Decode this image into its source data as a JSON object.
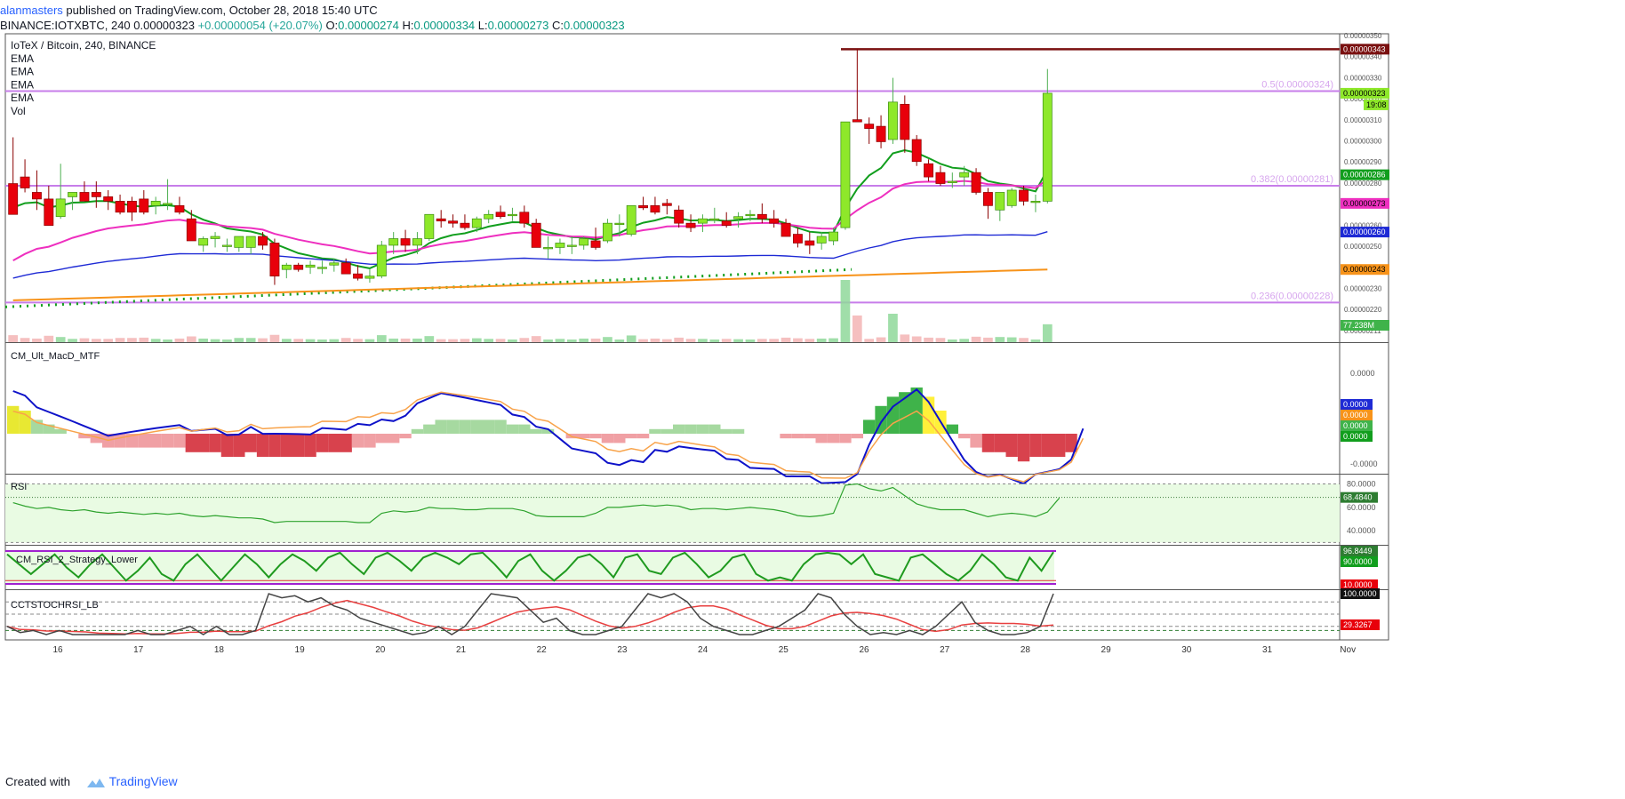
{
  "header": {
    "author": "alanmasters",
    "published": " published on TradingView.com, October 28, 2018 15:40 UTC",
    "symbol_line": "BINANCE:IOTXBTC, 240 ",
    "price": "0.00000323",
    "change": "+0.00000054 (+20.07%)",
    "o_label": "O:",
    "o_val": "0.00000274",
    "h_label": "H:",
    "h_val": "0.00000334",
    "l_label": "L:",
    "l_val": "0.00000273",
    "c_label": "C:",
    "c_val": "0.00000323"
  },
  "legend": {
    "title": "IoTeX / Bitcoin, 240, BINANCE",
    "items": [
      "EMA",
      "EMA",
      "EMA",
      "EMA",
      "Vol"
    ]
  },
  "footer": {
    "created_with": "Created with",
    "brand": "TradingView"
  },
  "colors": {
    "up": "#8ee82a",
    "down": "#e8000b",
    "ema_fast": "#119e1d",
    "ema_mid": "#ee2fbf",
    "ema_slow": "#1e2ad5",
    "ema_long": "#f7931a",
    "fib": "#c77dea",
    "resistance": "#7a1010",
    "macd_line": "#0e12c9",
    "macd_signal": "#f8a34a",
    "rsi": "#2ea32e"
  },
  "chart_data": [
    {
      "type": "candlestick",
      "title": "IoTeX / Bitcoin, 240, BINANCE",
      "x_ticks": [
        "16",
        "17",
        "18",
        "19",
        "20",
        "21",
        "22",
        "23",
        "24",
        "25",
        "26",
        "27",
        "28",
        "29",
        "30",
        "31",
        "Nov"
      ],
      "y_ticks": [
        "0.00000350",
        "0.00000340",
        "0.00000330",
        "0.00000320",
        "0.00000310",
        "0.00000300",
        "0.00000290",
        "0.00000280",
        "0.00000270",
        "0.00000260",
        "0.00000250",
        "0.00000240",
        "0.00000230",
        "0.00000220",
        "0.00000211"
      ],
      "ylim": [
        2.1e-06,
        3.5e-06
      ],
      "candles_ohlc_summary": [
        [
          2.82e-06,
          3.03e-06,
          2.82e-06,
          2.68e-06
        ],
        [
          2.85e-06,
          2.93e-06,
          2.78e-06,
          2.8e-06
        ],
        [
          2.78e-06,
          2.88e-06,
          2.7e-06,
          2.75e-06
        ],
        [
          2.75e-06,
          2.81e-06,
          2.63e-06,
          2.63e-06
        ],
        [
          2.67e-06,
          2.91e-06,
          2.66e-06,
          2.75e-06
        ],
        [
          2.76e-06,
          2.78e-06,
          2.7e-06,
          2.78e-06
        ],
        [
          2.78e-06,
          2.83e-06,
          2.74e-06,
          2.74e-06
        ],
        [
          2.78e-06,
          2.83e-06,
          2.71e-06,
          2.76e-06
        ],
        [
          2.76e-06,
          2.79e-06,
          2.7e-06,
          2.74e-06
        ],
        [
          2.74e-06,
          2.77e-06,
          2.68e-06,
          2.69e-06
        ],
        [
          2.74e-06,
          2.76e-06,
          2.65e-06,
          2.69e-06
        ],
        [
          2.75e-06,
          2.79e-06,
          2.68e-06,
          2.69e-06
        ],
        [
          2.72e-06,
          2.76e-06,
          2.68e-06,
          2.74e-06
        ],
        [
          2.73e-06,
          2.84e-06,
          2.7e-06,
          2.73e-06
        ],
        [
          2.72e-06,
          2.76e-06,
          2.68e-06,
          2.69e-06
        ],
        [
          2.66e-06,
          2.7e-06,
          2.56e-06,
          2.56e-06
        ],
        [
          2.54e-06,
          2.58e-06,
          2.51e-06,
          2.57e-06
        ],
        [
          2.57e-06,
          2.6e-06,
          2.53e-06,
          2.58e-06
        ],
        [
          2.54e-06,
          2.57e-06,
          2.51e-06,
          2.54e-06
        ],
        [
          2.53e-06,
          2.58e-06,
          2.51e-06,
          2.58e-06
        ],
        [
          2.53e-06,
          2.58e-06,
          2.5e-06,
          2.58e-06
        ],
        [
          2.58e-06,
          2.6e-06,
          2.52e-06,
          2.54e-06
        ],
        [
          2.55e-06,
          2.57e-06,
          2.36e-06,
          2.4e-06
        ],
        [
          2.43e-06,
          2.46e-06,
          2.39e-06,
          2.45e-06
        ],
        [
          2.45e-06,
          2.46e-06,
          2.42e-06,
          2.43e-06
        ],
        [
          2.44e-06,
          2.47e-06,
          2.41e-06,
          2.45e-06
        ],
        [
          2.44e-06,
          2.47e-06,
          2.41e-06,
          2.44e-06
        ],
        [
          2.45e-06,
          2.48e-06,
          2.42e-06,
          2.46e-06
        ],
        [
          2.46e-06,
          2.48e-06,
          2.42e-06,
          2.41e-06
        ],
        [
          2.41e-06,
          2.45e-06,
          2.38e-06,
          2.39e-06
        ],
        [
          2.39e-06,
          2.43e-06,
          2.37e-06,
          2.4e-06
        ],
        [
          2.4e-06,
          2.56e-06,
          2.39e-06,
          2.54e-06
        ],
        [
          2.54e-06,
          2.6e-06,
          2.5e-06,
          2.57e-06
        ],
        [
          2.57e-06,
          2.61e-06,
          2.51e-06,
          2.54e-06
        ],
        [
          2.54e-06,
          2.6e-06,
          2.5e-06,
          2.57e-06
        ],
        [
          2.57e-06,
          2.68e-06,
          2.56e-06,
          2.68e-06
        ],
        [
          2.66e-06,
          2.7e-06,
          2.62e-06,
          2.65e-06
        ],
        [
          2.65e-06,
          2.68e-06,
          2.62e-06,
          2.64e-06
        ],
        [
          2.64e-06,
          2.68e-06,
          2.61e-06,
          2.62e-06
        ],
        [
          2.62e-06,
          2.67e-06,
          2.6e-06,
          2.66e-06
        ],
        [
          2.66e-06,
          2.7e-06,
          2.64e-06,
          2.68e-06
        ],
        [
          2.69e-06,
          2.72e-06,
          2.66e-06,
          2.67e-06
        ],
        [
          2.68e-06,
          2.71e-06,
          2.65e-06,
          2.68e-06
        ],
        [
          2.69e-06,
          2.72e-06,
          2.62e-06,
          2.64e-06
        ],
        [
          2.64e-06,
          2.66e-06,
          2.54e-06,
          2.53e-06
        ],
        [
          2.53e-06,
          2.58e-06,
          2.48e-06,
          2.53e-06
        ],
        [
          2.53e-06,
          2.57e-06,
          2.5e-06,
          2.55e-06
        ],
        [
          2.54e-06,
          2.58e-06,
          2.5e-06,
          2.54e-06
        ],
        [
          2.54e-06,
          2.58e-06,
          2.52e-06,
          2.57e-06
        ],
        [
          2.56e-06,
          2.62e-06,
          2.52e-06,
          2.53e-06
        ],
        [
          2.56e-06,
          2.66e-06,
          2.55e-06,
          2.64e-06
        ],
        [
          2.64e-06,
          2.68e-06,
          2.58e-06,
          2.64e-06
        ],
        [
          2.59e-06,
          2.72e-06,
          2.58e-06,
          2.72e-06
        ],
        [
          2.72e-06,
          2.76e-06,
          2.7e-06,
          2.71e-06
        ],
        [
          2.72e-06,
          2.76e-06,
          2.68e-06,
          2.69e-06
        ],
        [
          2.73e-06,
          2.75e-06,
          2.68e-06,
          2.72e-06
        ],
        [
          2.7e-06,
          2.72e-06,
          2.62e-06,
          2.64e-06
        ],
        [
          2.64e-06,
          2.68e-06,
          2.6e-06,
          2.62e-06
        ],
        [
          2.64e-06,
          2.68e-06,
          2.6e-06,
          2.66e-06
        ],
        [
          2.66e-06,
          2.71e-06,
          2.64e-06,
          2.66e-06
        ],
        [
          2.65e-06,
          2.69e-06,
          2.62e-06,
          2.63e-06
        ],
        [
          2.66e-06,
          2.69e-06,
          2.62e-06,
          2.67e-06
        ],
        [
          2.68e-06,
          2.7e-06,
          2.65e-06,
          2.68e-06
        ],
        [
          2.68e-06,
          2.73e-06,
          2.64e-06,
          2.66e-06
        ],
        [
          2.66e-06,
          2.7e-06,
          2.62e-06,
          2.64e-06
        ],
        [
          2.64e-06,
          2.66e-06,
          2.58e-06,
          2.58e-06
        ],
        [
          2.59e-06,
          2.62e-06,
          2.53e-06,
          2.55e-06
        ],
        [
          2.56e-06,
          2.6e-06,
          2.5e-06,
          2.54e-06
        ],
        [
          2.55e-06,
          2.6e-06,
          2.52e-06,
          2.58e-06
        ],
        [
          2.56e-06,
          2.62e-06,
          2.54e-06,
          2.6e-06
        ],
        [
          2.62e-06,
          3.1e-06,
          2.61e-06,
          3.1e-06
        ],
        [
          3.11e-06,
          3.43e-06,
          3.1e-06,
          3.1e-06
        ],
        [
          3.09e-06,
          3.12e-06,
          3e-06,
          3.07e-06
        ],
        [
          3.08e-06,
          3.13e-06,
          2.98e-06,
          3.01e-06
        ],
        [
          3.02e-06,
          3.3e-06,
          3e-06,
          3.19e-06
        ],
        [
          3.18e-06,
          3.22e-06,
          2.96e-06,
          3.02e-06
        ],
        [
          3.02e-06,
          3.04e-06,
          2.9e-06,
          2.92e-06
        ],
        [
          2.91e-06,
          2.93e-06,
          2.83e-06,
          2.85e-06
        ],
        [
          2.87e-06,
          2.9e-06,
          2.81e-06,
          2.82e-06
        ],
        [
          2.83e-06,
          2.87e-06,
          2.8e-06,
          2.83e-06
        ],
        [
          2.85e-06,
          2.9e-06,
          2.81e-06,
          2.87e-06
        ],
        [
          2.87e-06,
          2.89e-06,
          2.77e-06,
          2.78e-06
        ],
        [
          2.78e-06,
          2.8e-06,
          2.66e-06,
          2.72e-06
        ],
        [
          2.7e-06,
          2.76e-06,
          2.65e-06,
          2.78e-06
        ],
        [
          2.72e-06,
          2.8e-06,
          2.71e-06,
          2.79e-06
        ],
        [
          2.79e-06,
          2.81e-06,
          2.72e-06,
          2.74e-06
        ],
        [
          2.74e-06,
          2.77e-06,
          2.69e-06,
          2.74e-06
        ],
        [
          2.74e-06,
          3.34e-06,
          2.73e-06,
          3.23e-06
        ]
      ],
      "levels": [
        {
          "name": "0.5(0.00000324)",
          "value": 3.24e-06
        },
        {
          "name": "0.382(0.00000281)",
          "value": 2.81e-06
        },
        {
          "name": "0.236(0.00000228)",
          "value": 2.28e-06
        },
        {
          "name": "resistance",
          "value": 3.43e-06
        }
      ],
      "price_tags": [
        {
          "label": "0.00000343",
          "color": "#7a1010"
        },
        {
          "label": "0.00000323",
          "color": "#8ee82a",
          "sub": "19:08"
        },
        {
          "label": "0.00000286",
          "color": "#119e1d"
        },
        {
          "label": "0.00000273",
          "color": "#ee2fbf"
        },
        {
          "label": "0.00000260",
          "color": "#1e2ad5"
        },
        {
          "label": "0.00000243",
          "color": "#f7931a"
        },
        {
          "label": "77.238M",
          "color": "#3fb34a"
        }
      ]
    },
    {
      "type": "bar",
      "title": "CM_Ult_MacD_MTF",
      "y_ticks": [
        "0.0000",
        "-0.0000"
      ],
      "price_tags": [
        "0.0000",
        "0.0000",
        "0.0000",
        "0.0000"
      ],
      "histogram": [
        6,
        5,
        3,
        2,
        1,
        0,
        -1,
        -2,
        -3,
        -3,
        -3,
        -3,
        -3,
        -3,
        -3,
        -4,
        -4,
        -4,
        -5,
        -5,
        -4,
        -5,
        -5,
        -5,
        -5,
        -5,
        -4,
        -4,
        -4,
        -3,
        -3,
        -2,
        -2,
        -1,
        1,
        2,
        3,
        3,
        3,
        3,
        3,
        3,
        2,
        2,
        1,
        1,
        0,
        -1,
        -1,
        -1,
        -2,
        -2,
        -1,
        -1,
        1,
        1,
        2,
        2,
        2,
        2,
        1,
        1,
        0,
        0,
        0,
        -1,
        -1,
        -1,
        -2,
        -2,
        -2,
        -1,
        3,
        6,
        8,
        9,
        10,
        8,
        5,
        2,
        -1,
        -3,
        -4,
        -4,
        -5,
        -6,
        -5,
        -5,
        -5,
        -4,
        0
      ]
    },
    {
      "type": "line",
      "title": "RSI",
      "y_ticks": [
        "80.0000",
        "60.0000",
        "40.0000"
      ],
      "price_tags": [
        "68.4840"
      ],
      "values": [
        64,
        61,
        59,
        60,
        58,
        57,
        58,
        56,
        55,
        56,
        55,
        54,
        55,
        54,
        55,
        53,
        52,
        53,
        52,
        51,
        51,
        50,
        47,
        48,
        48,
        48,
        48,
        48,
        48,
        47,
        47,
        55,
        57,
        56,
        57,
        60,
        59,
        59,
        58,
        58,
        59,
        59,
        59,
        57,
        53,
        52,
        52,
        52,
        52,
        55,
        60,
        60,
        61,
        62,
        61,
        62,
        61,
        58,
        59,
        59,
        58,
        59,
        60,
        59,
        58,
        56,
        53,
        52,
        53,
        55,
        79,
        80,
        76,
        74,
        77,
        70,
        63,
        60,
        58,
        58,
        58,
        55,
        52,
        54,
        55,
        54,
        52,
        56,
        68
      ]
    },
    {
      "type": "line",
      "title": "CM_RSI_2_Strategy_Lower",
      "price_tags": [
        "96.8449",
        "90.0000",
        "10.0000"
      ],
      "values": [
        90,
        60,
        30,
        60,
        90,
        50,
        20,
        60,
        90,
        50,
        10,
        40,
        80,
        30,
        10,
        60,
        90,
        50,
        10,
        50,
        90,
        60,
        20,
        60,
        90,
        70,
        40,
        80,
        95,
        60,
        30,
        80,
        95,
        70,
        40,
        80,
        95,
        80,
        60,
        90,
        95,
        60,
        20,
        70,
        90,
        40,
        10,
        40,
        80,
        90,
        60,
        20,
        80,
        90,
        40,
        30,
        80,
        95,
        60,
        20,
        40,
        80,
        90,
        30,
        10,
        20,
        10,
        60,
        90,
        95,
        90,
        60,
        90,
        30,
        20,
        10,
        80,
        90,
        60,
        30,
        10,
        40,
        90,
        60,
        20,
        10,
        80,
        40,
        96.8
      ]
    },
    {
      "type": "line",
      "title": "CCTSTOCHRSI_LB",
      "price_tags": [
        "100.0000",
        "29.3267"
      ],
      "values": [
        20,
        5,
        10,
        0,
        10,
        0,
        0,
        0,
        0,
        0,
        10,
        0,
        0,
        10,
        20,
        0,
        20,
        0,
        0,
        10,
        100,
        90,
        95,
        80,
        90,
        70,
        60,
        40,
        30,
        20,
        10,
        0,
        5,
        20,
        0,
        20,
        60,
        100,
        95,
        90,
        60,
        30,
        40,
        10,
        0,
        0,
        10,
        20,
        60,
        100,
        90,
        100,
        80,
        40,
        20,
        10,
        0,
        0,
        10,
        20,
        40,
        60,
        100,
        90,
        50,
        20,
        0,
        5,
        0,
        10,
        0,
        20,
        50,
        80,
        30,
        10,
        0,
        0,
        5,
        20,
        100
      ]
    }
  ]
}
